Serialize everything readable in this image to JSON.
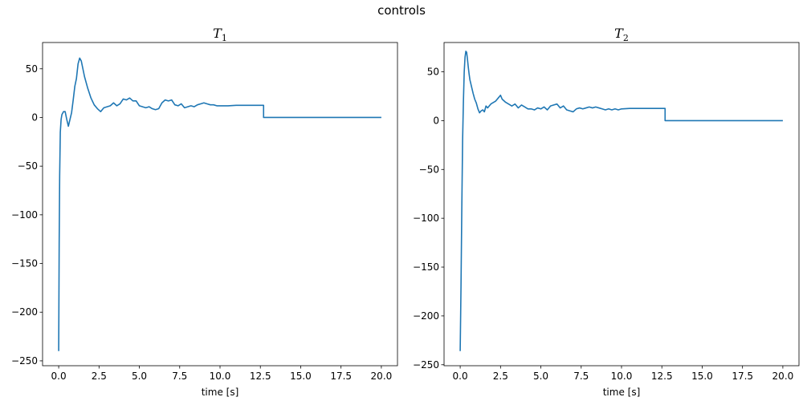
{
  "figure": {
    "suptitle": "controls"
  },
  "chart_data": [
    {
      "type": "line",
      "title_main": "T",
      "title_sub": "1",
      "xlabel": "time [s]",
      "ylabel": "",
      "xlim": [
        -1.0,
        21.0
      ],
      "ylim": [
        -255,
        77
      ],
      "xticks": [
        0.0,
        2.5,
        5.0,
        7.5,
        10.0,
        12.5,
        15.0,
        17.5,
        20.0
      ],
      "xtick_labels": [
        "0.0",
        "2.5",
        "5.0",
        "7.5",
        "10.0",
        "12.5",
        "15.0",
        "17.5",
        "20.0"
      ],
      "yticks": [
        -250,
        -200,
        -150,
        -100,
        -50,
        0,
        50
      ],
      "ytick_labels": [
        "−250",
        "−200",
        "−150",
        "−100",
        "−50",
        "0",
        "50"
      ],
      "color": "#1f77b4",
      "x": [
        0.0,
        0.03,
        0.06,
        0.1,
        0.15,
        0.2,
        0.3,
        0.4,
        0.5,
        0.6,
        0.7,
        0.8,
        0.9,
        1.0,
        1.1,
        1.2,
        1.3,
        1.4,
        1.5,
        1.6,
        1.8,
        2.0,
        2.2,
        2.4,
        2.6,
        2.8,
        3.0,
        3.2,
        3.4,
        3.6,
        3.8,
        4.0,
        4.2,
        4.4,
        4.6,
        4.8,
        5.0,
        5.2,
        5.4,
        5.6,
        5.8,
        6.0,
        6.2,
        6.4,
        6.6,
        6.8,
        7.0,
        7.2,
        7.4,
        7.6,
        7.8,
        8.0,
        8.2,
        8.4,
        8.6,
        8.8,
        9.0,
        9.2,
        9.4,
        9.6,
        9.8,
        10.0,
        10.5,
        11.0,
        11.5,
        12.0,
        12.5,
        12.7,
        12.7,
        13.0,
        15.0,
        17.5,
        20.0
      ],
      "y": [
        -240,
        -130,
        -60,
        -15,
        -2,
        3,
        6,
        6,
        -2,
        -9,
        -2,
        5,
        18,
        32,
        40,
        55,
        61,
        58,
        50,
        42,
        30,
        20,
        13,
        9,
        6,
        10,
        11,
        12,
        15,
        12,
        14,
        19,
        18,
        20,
        17,
        17,
        12,
        11,
        10,
        11,
        9,
        8,
        9,
        15,
        18,
        17,
        18,
        13,
        12,
        14,
        10,
        11,
        12,
        11,
        13,
        14,
        15,
        14,
        13,
        13,
        12,
        12,
        12,
        12.5,
        12.5,
        12.5,
        12.5,
        12.5,
        0,
        0,
        0,
        0,
        0
      ]
    },
    {
      "type": "line",
      "title_main": "T",
      "title_sub": "2",
      "xlabel": "time [s]",
      "ylabel": "",
      "xlim": [
        -1.0,
        21.0
      ],
      "ylim": [
        -251,
        80
      ],
      "xticks": [
        0.0,
        2.5,
        5.0,
        7.5,
        10.0,
        12.5,
        15.0,
        17.5,
        20.0
      ],
      "xtick_labels": [
        "0.0",
        "2.5",
        "5.0",
        "7.5",
        "10.0",
        "12.5",
        "15.0",
        "17.5",
        "20.0"
      ],
      "yticks": [
        -250,
        -200,
        -150,
        -100,
        -50,
        0,
        50
      ],
      "ytick_labels": [
        "−250",
        "−200",
        "−150",
        "−100",
        "−50",
        "0",
        "50"
      ],
      "color": "#1f77b4",
      "x": [
        0.0,
        0.05,
        0.1,
        0.15,
        0.2,
        0.25,
        0.3,
        0.35,
        0.4,
        0.45,
        0.5,
        0.55,
        0.6,
        0.7,
        0.8,
        0.9,
        1.0,
        1.1,
        1.2,
        1.3,
        1.4,
        1.5,
        1.6,
        1.7,
        1.8,
        1.9,
        2.0,
        2.2,
        2.4,
        2.5,
        2.6,
        2.8,
        3.0,
        3.2,
        3.4,
        3.6,
        3.8,
        4.0,
        4.2,
        4.4,
        4.6,
        4.8,
        5.0,
        5.2,
        5.4,
        5.6,
        5.8,
        6.0,
        6.2,
        6.4,
        6.6,
        6.8,
        7.0,
        7.2,
        7.4,
        7.6,
        7.8,
        8.0,
        8.2,
        8.4,
        8.6,
        8.8,
        9.0,
        9.2,
        9.4,
        9.6,
        9.8,
        10.0,
        10.5,
        11.0,
        11.5,
        12.0,
        12.5,
        12.7,
        12.7,
        13.0,
        15.0,
        17.5,
        20.0
      ],
      "y": [
        -236,
        -170,
        -90,
        -20,
        20,
        50,
        65,
        71,
        70,
        63,
        55,
        48,
        42,
        35,
        28,
        22,
        18,
        12,
        8,
        10,
        11,
        9,
        15,
        13,
        15,
        17,
        18,
        20,
        24,
        26,
        22,
        19,
        17,
        15,
        17,
        13,
        16,
        14,
        12,
        12,
        11,
        13,
        12,
        14,
        11,
        15,
        16,
        17,
        13,
        15,
        11,
        10,
        9,
        12,
        13,
        12,
        13,
        14,
        13,
        14,
        13,
        12,
        11,
        12,
        11,
        12,
        11,
        12,
        12.5,
        12.5,
        12.5,
        12.5,
        12.5,
        12.5,
        0,
        0,
        0,
        0,
        0
      ]
    }
  ]
}
